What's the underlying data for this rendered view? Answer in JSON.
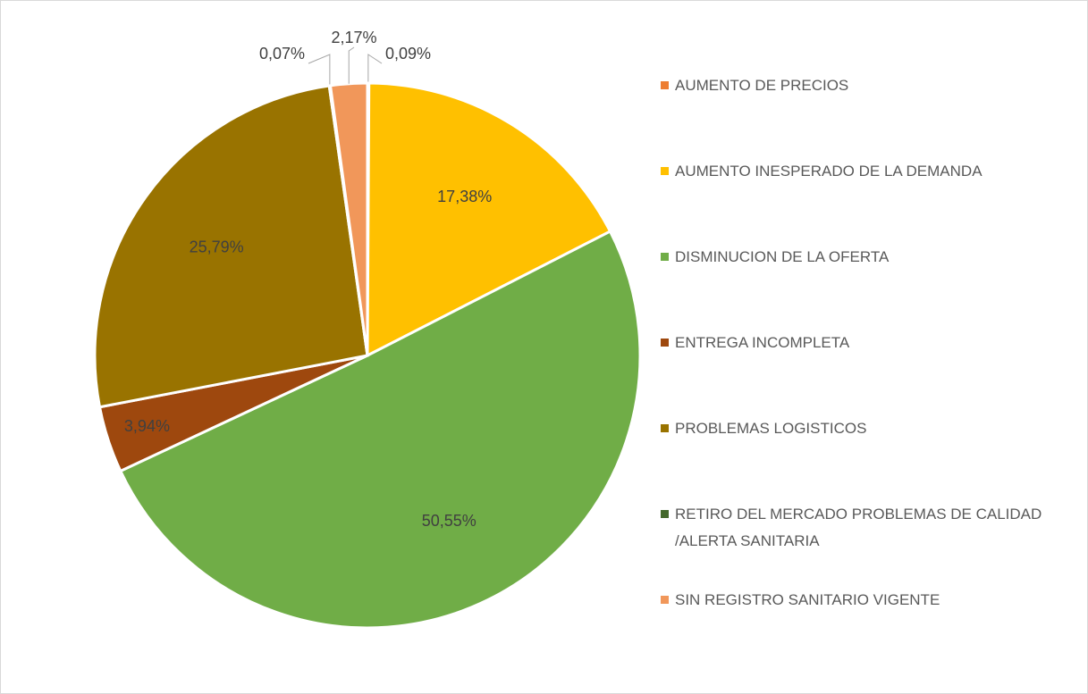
{
  "chart_data": {
    "type": "pie",
    "categories": [
      "AUMENTO DE PRECIOS",
      "AUMENTO INESPERADO DE LA DEMANDA",
      "DISMINUCION DE LA OFERTA",
      "ENTREGA INCOMPLETA",
      "PROBLEMAS LOGISTICOS",
      "RETIRO DEL MERCADO PROBLEMAS DE CALIDAD /ALERTA SANITARIA",
      "SIN REGISTRO SANITARIO VIGENTE"
    ],
    "values": [
      0.09,
      17.38,
      50.55,
      3.94,
      25.79,
      0.07,
      2.17
    ],
    "value_labels": [
      "0,09%",
      "17,38%",
      "50,55%",
      "3,94%",
      "25,79%",
      "0,07%",
      "2,17%"
    ],
    "colors": [
      "#ed7d31",
      "#ffc000",
      "#70ad47",
      "#9e480e",
      "#997300",
      "#43682b",
      "#f1975a"
    ],
    "legend": "right"
  }
}
